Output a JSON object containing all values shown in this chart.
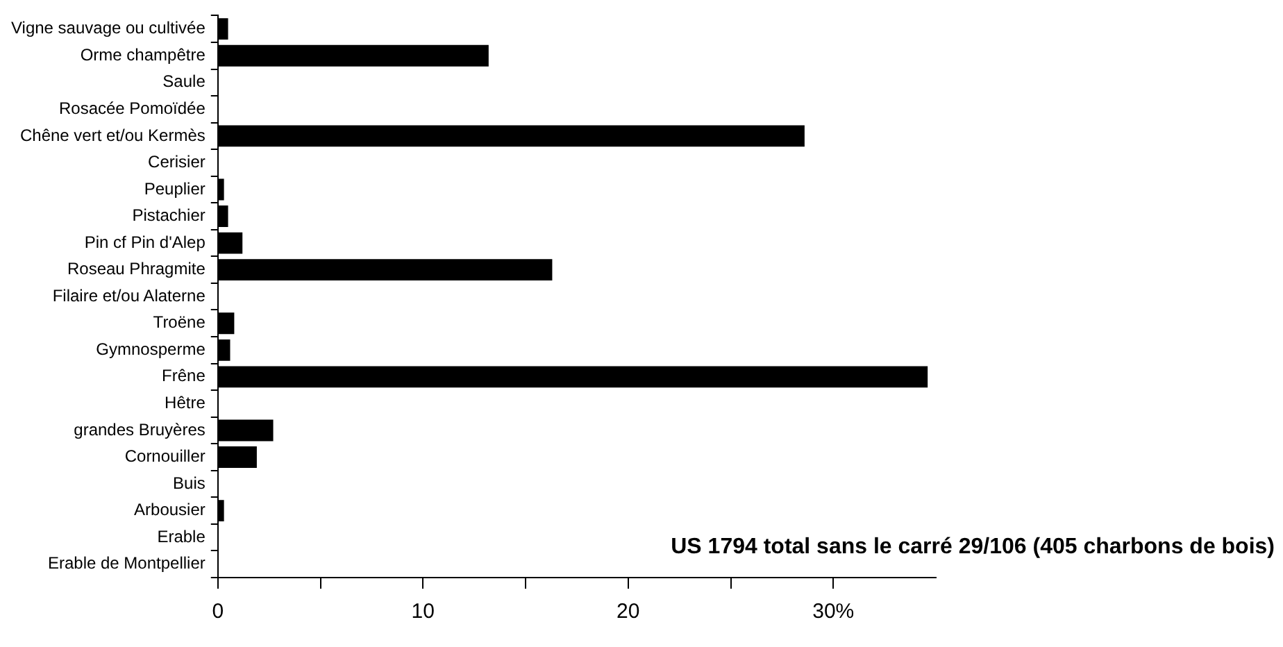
{
  "chart_data": {
    "type": "bar",
    "orientation": "horizontal",
    "categories": [
      "Vigne sauvage ou cultivée",
      "Orme champêtre",
      "Saule",
      "Rosacée Pomoïdée",
      "Chêne vert et/ou Kermès",
      "Cerisier",
      "Peuplier",
      "Pistachier",
      "Pin cf Pin d'Alep",
      "Roseau Phragmite",
      "Filaire et/ou Alaterne",
      "Troëne",
      "Gymnosperme",
      "Frêne",
      "Hêtre",
      "grandes Bruyères",
      "Cornouiller",
      "Buis",
      "Arbousier",
      "Erable",
      "Erable de Montpellier"
    ],
    "values": [
      0.5,
      13.2,
      0,
      0,
      28.6,
      0,
      0.3,
      0.5,
      1.2,
      16.3,
      0,
      0.8,
      0.6,
      34.6,
      0,
      2.7,
      1.9,
      0,
      0.3,
      0,
      0
    ],
    "color": "#000000",
    "xlim": [
      0,
      35
    ],
    "xticks": [
      0,
      {
        "value": 5,
        "label": null
      },
      10,
      {
        "value": 15,
        "label": null
      },
      20,
      {
        "value": 25,
        "label": null
      },
      {
        "value": 30,
        "label": "30%"
      }
    ],
    "grid": false,
    "legend": false,
    "annotations": [
      "US 1794 total sans le carré 29/106 (405 charbons de bois)"
    ]
  }
}
